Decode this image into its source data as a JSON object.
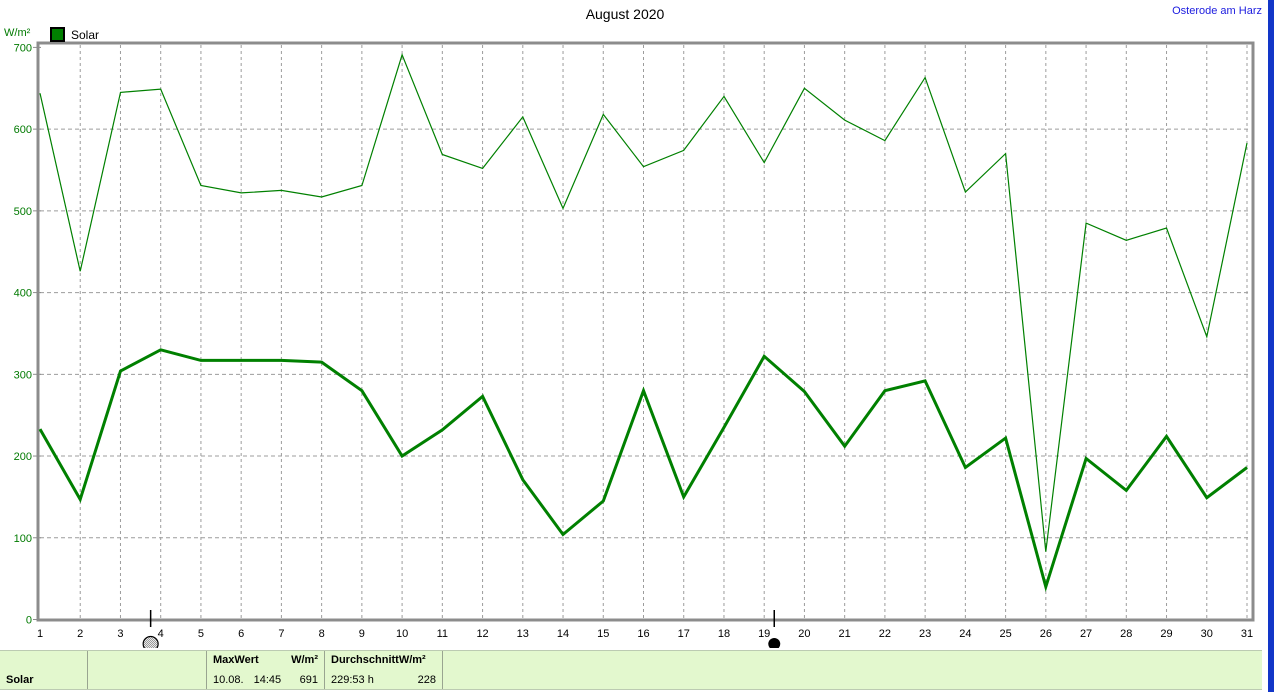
{
  "header": {
    "title": "August 2020",
    "station": "Osterode am Harz"
  },
  "legend": {
    "label": "Solar",
    "color": "#008000"
  },
  "axis": {
    "unit_label": "W/m²",
    "y_ticks": [
      0,
      100,
      200,
      300,
      400,
      500,
      600,
      700
    ]
  },
  "chart_data": {
    "type": "line",
    "title": "August 2020",
    "ylabel": "W/m²",
    "ylim": [
      0,
      700
    ],
    "grid": "dashed",
    "legend_entries": [
      "Solar"
    ],
    "x": [
      1,
      2,
      3,
      4,
      5,
      6,
      7,
      8,
      9,
      10,
      11,
      12,
      13,
      14,
      15,
      16,
      17,
      18,
      19,
      20,
      21,
      22,
      23,
      24,
      25,
      26,
      27,
      28,
      29,
      30,
      31
    ],
    "series": [
      {
        "name": "solar-daily-max",
        "values": [
          644,
          426,
          645,
          649,
          531,
          522,
          525,
          517,
          531,
          691,
          569,
          552,
          615,
          503,
          618,
          554,
          574,
          640,
          559,
          650,
          611,
          586,
          663,
          523,
          570,
          83,
          485,
          464,
          479,
          346,
          583
        ],
        "stroke_width": 1.2
      },
      {
        "name": "solar-daily-average",
        "values": [
          233,
          147,
          304,
          330,
          317,
          317,
          317,
          315,
          280,
          200,
          232,
          273,
          171,
          104,
          145,
          280,
          150,
          235,
          322,
          279,
          212,
          280,
          292,
          186,
          222,
          40,
          197,
          158,
          224,
          149,
          186
        ],
        "stroke_width": 3
      }
    ],
    "moon_markers": [
      {
        "x": 3.75,
        "phase": "full-moon"
      },
      {
        "x": 19.25,
        "phase": "new-moon"
      }
    ]
  },
  "status_bar": {
    "series_label": "Solar",
    "max": {
      "header_label": "MaxWert",
      "header_unit": "W/m²",
      "date": "10.08.",
      "time": "14:45",
      "value": "691"
    },
    "average": {
      "header_label": "DurchschnittW/m²",
      "duration": "229:53 h",
      "value": "228"
    }
  },
  "colors": {
    "line": "#008000",
    "axis_text": "#007a00",
    "grid": "#9c9c9c",
    "frame": "#8c8c8c",
    "station_text": "#1b1bdf",
    "right_stripe": "#1236c8",
    "bar_background": "#e3f8ce",
    "marker": "#000000"
  }
}
